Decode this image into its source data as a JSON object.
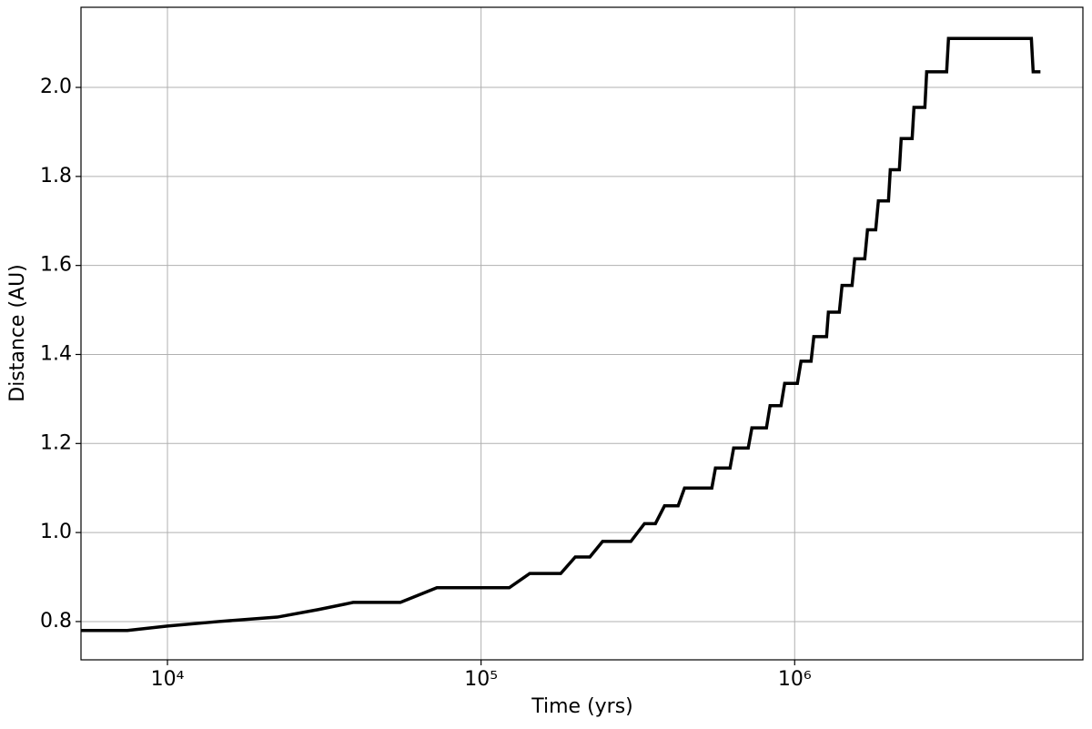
{
  "chart_data": {
    "type": "line",
    "xlabel": "Time (yrs)",
    "ylabel": "Distance (AU)",
    "xscale": "log",
    "grid": true,
    "xlim": [
      5300,
      8300000
    ],
    "ylim": [
      0.714,
      2.18
    ],
    "xticks": [
      {
        "value": 10000,
        "label": "10⁴"
      },
      {
        "value": 100000,
        "label": "10⁵"
      },
      {
        "value": 1000000,
        "label": "10⁶"
      }
    ],
    "yticks": [
      {
        "value": 0.8,
        "label": "0.8"
      },
      {
        "value": 1.0,
        "label": "1.0"
      },
      {
        "value": 1.2,
        "label": "1.2"
      },
      {
        "value": 1.4,
        "label": "1.4"
      },
      {
        "value": 1.6,
        "label": "1.6"
      },
      {
        "value": 1.8,
        "label": "1.8"
      },
      {
        "value": 2.0,
        "label": "2.0"
      }
    ],
    "x": [
      5300,
      7450,
      10000,
      14540,
      22400,
      30300,
      39100,
      55300,
      72300,
      123000,
      143000,
      179500,
      199700,
      222300,
      244100,
      300300,
      331900,
      359700,
      384600,
      425000,
      445500,
      544300,
      559000,
      622200,
      639000,
      711000,
      730500,
      812800,
      834800,
      904500,
      929200,
      1020000,
      1048000,
      1128000,
      1151000,
      1264000,
      1281000,
      1388000,
      1416000,
      1524000,
      1554000,
      1673000,
      1707000,
      1813000,
      1849000,
      1991000,
      2018000,
      2157000,
      2186000,
      2369000,
      2401000,
      2601000,
      2636000,
      3052000,
      3094000,
      5685000,
      5761000,
      6077000
    ],
    "series": [
      {
        "name": "distance",
        "color": "#000000",
        "values": [
          0.78,
          0.78,
          0.79,
          0.8,
          0.81,
          0.827,
          0.843,
          0.843,
          0.876,
          0.876,
          0.908,
          0.908,
          0.945,
          0.945,
          0.98,
          0.98,
          1.02,
          1.02,
          1.06,
          1.06,
          1.1,
          1.1,
          1.145,
          1.145,
          1.19,
          1.19,
          1.235,
          1.235,
          1.285,
          1.285,
          1.335,
          1.335,
          1.385,
          1.385,
          1.44,
          1.44,
          1.495,
          1.495,
          1.555,
          1.555,
          1.615,
          1.615,
          1.68,
          1.68,
          1.745,
          1.745,
          1.815,
          1.815,
          1.885,
          1.885,
          1.955,
          1.955,
          2.035,
          2.035,
          2.11,
          2.11,
          2.035,
          2.035
        ]
      }
    ]
  }
}
